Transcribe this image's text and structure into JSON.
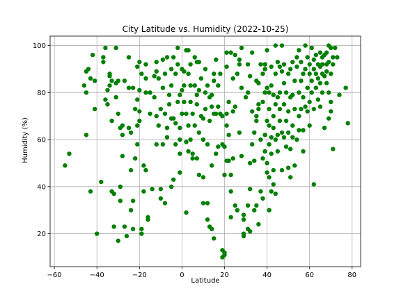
{
  "chart_data": {
    "type": "scatter",
    "title": "City Latitude vs. Humidity (2022-10-25)",
    "xlabel": "Latitude",
    "ylabel": "Humidity (%)",
    "xlim": [
      -62,
      84
    ],
    "ylim": [
      6,
      104
    ],
    "xticks": [
      -60,
      -40,
      -20,
      0,
      20,
      40,
      60,
      80
    ],
    "yticks": [
      20,
      40,
      60,
      80,
      100
    ],
    "xtick_labels": [
      "−60",
      "−40",
      "−20",
      "0",
      "20",
      "40",
      "60",
      "80"
    ],
    "ytick_labels": [
      "20",
      "40",
      "60",
      "80",
      "100"
    ],
    "grid": true,
    "marker_color": "#007f00",
    "points": [
      [
        -55,
        49
      ],
      [
        -53,
        54
      ],
      [
        -46,
        83
      ],
      [
        -45,
        80
      ],
      [
        -45,
        89
      ],
      [
        -45,
        62
      ],
      [
        -44,
        90
      ],
      [
        -43,
        86
      ],
      [
        -42,
        96
      ],
      [
        -41,
        85
      ],
      [
        -41,
        73
      ],
      [
        -40,
        20
      ],
      [
        -43,
        38
      ],
      [
        -38,
        42
      ],
      [
        -37,
        93
      ],
      [
        -37,
        95
      ],
      [
        -36,
        99
      ],
      [
        -36,
        77
      ],
      [
        -35,
        75
      ],
      [
        -35,
        81
      ],
      [
        -34,
        83
      ],
      [
        -34,
        87
      ],
      [
        -34,
        88
      ],
      [
        -33,
        68
      ],
      [
        -33,
        85
      ],
      [
        -33,
        38
      ],
      [
        -32,
        37
      ],
      [
        -32,
        23
      ],
      [
        -31,
        99
      ],
      [
        -31,
        78
      ],
      [
        -31,
        84
      ],
      [
        -30,
        85
      ],
      [
        -30,
        71
      ],
      [
        -30,
        17
      ],
      [
        -29,
        65
      ],
      [
        -29,
        40
      ],
      [
        -29,
        34
      ],
      [
        -28,
        62
      ],
      [
        -28,
        53
      ],
      [
        -28,
        66
      ],
      [
        -27,
        85
      ],
      [
        -27,
        23
      ],
      [
        -26,
        19
      ],
      [
        -25,
        95
      ],
      [
        -25,
        82
      ],
      [
        -25,
        65
      ],
      [
        -24,
        30
      ],
      [
        -24,
        47
      ],
      [
        -24,
        63
      ],
      [
        -23,
        82
      ],
      [
        -23,
        34
      ],
      [
        -23,
        22
      ],
      [
        -22,
        52
      ],
      [
        -22,
        73
      ],
      [
        -21,
        77
      ],
      [
        -21,
        91
      ],
      [
        -21,
        58
      ],
      [
        -21,
        66
      ],
      [
        -20,
        93
      ],
      [
        -20,
        81
      ],
      [
        -20,
        68
      ],
      [
        -20,
        72
      ],
      [
        -19,
        88
      ],
      [
        -19,
        22
      ],
      [
        -19,
        20
      ],
      [
        -18,
        49
      ],
      [
        -18,
        38
      ],
      [
        -17,
        86
      ],
      [
        -17,
        80
      ],
      [
        -17,
        92
      ],
      [
        -17,
        47
      ],
      [
        -16,
        27
      ],
      [
        -16,
        26
      ],
      [
        -15,
        71
      ],
      [
        -15,
        80
      ],
      [
        -14,
        39
      ],
      [
        -13,
        78
      ],
      [
        -13,
        87
      ],
      [
        -12,
        70
      ],
      [
        -12,
        58
      ],
      [
        -12,
        93
      ],
      [
        -12,
        89
      ],
      [
        -11,
        86
      ],
      [
        -11,
        66
      ],
      [
        -10,
        73
      ],
      [
        -10,
        39
      ],
      [
        -10,
        35
      ],
      [
        -9,
        58
      ],
      [
        -9,
        82
      ],
      [
        -9,
        94
      ],
      [
        -8,
        88
      ],
      [
        -8,
        71
      ],
      [
        -8,
        33
      ],
      [
        -7,
        95
      ],
      [
        -7,
        65
      ],
      [
        -7,
        61
      ],
      [
        -6,
        75
      ],
      [
        -6,
        79
      ],
      [
        -5,
        83
      ],
      [
        -5,
        90
      ],
      [
        -5,
        40
      ],
      [
        -5,
        69
      ],
      [
        -4,
        69
      ],
      [
        -4,
        95
      ],
      [
        -4,
        43
      ],
      [
        -3,
        67
      ],
      [
        -3,
        58
      ],
      [
        -3,
        88
      ],
      [
        -2,
        99
      ],
      [
        -2,
        92
      ],
      [
        -2,
        76
      ],
      [
        -1,
        79
      ],
      [
        -1,
        65
      ],
      [
        -1,
        46
      ],
      [
        -1,
        54
      ],
      [
        -1,
        60
      ],
      [
        0,
        90
      ],
      [
        0,
        71
      ],
      [
        0,
        81
      ],
      [
        1,
        89
      ],
      [
        1,
        83
      ],
      [
        1,
        76
      ],
      [
        2,
        98
      ],
      [
        2,
        71
      ],
      [
        2,
        29
      ],
      [
        2,
        59
      ],
      [
        3,
        55
      ],
      [
        3,
        88
      ],
      [
        3,
        98
      ],
      [
        3,
        66
      ],
      [
        4,
        92
      ],
      [
        4,
        76
      ],
      [
        4,
        83
      ],
      [
        4,
        60
      ],
      [
        5,
        71
      ],
      [
        5,
        52
      ],
      [
        5,
        54
      ],
      [
        6,
        95
      ],
      [
        6,
        66
      ],
      [
        6,
        83
      ],
      [
        7,
        79
      ],
      [
        7,
        75
      ],
      [
        7,
        52
      ],
      [
        7,
        93
      ],
      [
        8,
        63
      ],
      [
        8,
        93
      ],
      [
        8,
        81
      ],
      [
        8,
        45
      ],
      [
        9,
        86
      ],
      [
        9,
        70
      ],
      [
        10,
        44
      ],
      [
        10,
        60
      ],
      [
        10,
        69
      ],
      [
        10,
        33
      ],
      [
        11,
        90
      ],
      [
        11,
        73
      ],
      [
        11,
        80
      ],
      [
        12,
        58
      ],
      [
        12,
        33
      ],
      [
        12,
        26
      ],
      [
        12,
        83
      ],
      [
        13,
        23
      ],
      [
        13,
        68
      ],
      [
        13,
        78
      ],
      [
        14,
        22
      ],
      [
        14,
        49
      ],
      [
        14,
        74
      ],
      [
        14,
        79
      ],
      [
        15,
        18
      ],
      [
        15,
        88
      ],
      [
        15,
        85
      ],
      [
        15,
        71
      ],
      [
        16,
        71
      ],
      [
        16,
        94
      ],
      [
        16,
        54
      ],
      [
        17,
        74
      ],
      [
        17,
        57
      ],
      [
        17,
        83
      ],
      [
        18,
        88
      ],
      [
        18,
        71
      ],
      [
        19,
        58
      ],
      [
        19,
        13
      ],
      [
        19,
        10
      ],
      [
        19,
        70
      ],
      [
        20,
        45
      ],
      [
        20,
        12
      ],
      [
        20,
        11
      ],
      [
        20,
        57
      ],
      [
        21,
        91
      ],
      [
        21,
        71
      ],
      [
        21,
        66
      ],
      [
        21,
        51
      ],
      [
        21,
        97
      ],
      [
        22,
        76
      ],
      [
        22,
        62
      ],
      [
        22,
        51
      ],
      [
        23,
        97
      ],
      [
        23,
        45
      ],
      [
        23,
        38
      ],
      [
        23,
        27
      ],
      [
        24,
        86
      ],
      [
        24,
        52
      ],
      [
        24,
        72
      ],
      [
        25,
        74
      ],
      [
        25,
        32
      ],
      [
        25,
        96
      ],
      [
        26,
        30
      ],
      [
        26,
        88
      ],
      [
        27,
        94
      ],
      [
        27,
        63
      ],
      [
        27,
        92
      ],
      [
        28,
        99
      ],
      [
        28,
        82
      ],
      [
        28,
        53
      ],
      [
        29,
        26
      ],
      [
        29,
        20
      ],
      [
        29,
        19
      ],
      [
        29,
        28
      ],
      [
        30,
        78
      ],
      [
        31,
        32
      ],
      [
        31,
        22
      ],
      [
        31,
        92
      ],
      [
        31,
        80
      ],
      [
        32,
        21
      ],
      [
        32,
        50
      ],
      [
        32,
        39
      ],
      [
        32,
        87
      ],
      [
        33,
        97
      ],
      [
        33,
        72
      ],
      [
        33,
        58
      ],
      [
        34,
        63
      ],
      [
        34,
        51
      ],
      [
        34,
        30
      ],
      [
        35,
        70
      ],
      [
        35,
        85
      ],
      [
        35,
        32
      ],
      [
        35,
        68
      ],
      [
        36,
        75
      ],
      [
        36,
        24
      ],
      [
        36,
        84
      ],
      [
        36,
        73
      ],
      [
        37,
        60
      ],
      [
        37,
        92
      ],
      [
        37,
        38
      ],
      [
        38,
        35
      ],
      [
        38,
        52
      ],
      [
        38,
        76
      ],
      [
        38,
        88
      ],
      [
        39,
        62
      ],
      [
        39,
        90
      ],
      [
        39,
        80
      ],
      [
        39,
        55
      ],
      [
        39,
        92
      ],
      [
        40,
        50
      ],
      [
        40,
        68
      ],
      [
        40,
        82
      ],
      [
        40,
        46
      ],
      [
        40,
        98
      ],
      [
        41,
        80
      ],
      [
        41,
        58
      ],
      [
        41,
        44
      ],
      [
        41,
        66
      ],
      [
        41,
        73
      ],
      [
        41,
        30
      ],
      [
        42,
        91
      ],
      [
        42,
        54
      ],
      [
        42,
        61
      ],
      [
        42,
        83
      ],
      [
        42,
        38
      ],
      [
        43,
        70
      ],
      [
        43,
        47
      ],
      [
        43,
        79
      ],
      [
        43,
        41
      ],
      [
        43,
        65
      ],
      [
        44,
        88
      ],
      [
        44,
        100
      ],
      [
        44,
        60
      ],
      [
        44,
        37
      ],
      [
        44,
        75
      ],
      [
        45,
        62
      ],
      [
        45,
        78
      ],
      [
        45,
        93
      ],
      [
        45,
        55
      ],
      [
        46,
        80
      ],
      [
        46,
        91
      ],
      [
        46,
        68
      ],
      [
        46,
        73
      ],
      [
        47,
        100
      ],
      [
        47,
        89
      ],
      [
        47,
        63
      ],
      [
        47,
        47
      ],
      [
        48,
        75
      ],
      [
        48,
        84
      ],
      [
        48,
        61
      ],
      [
        48,
        92
      ],
      [
        49,
        80
      ],
      [
        49,
        57
      ],
      [
        49,
        68
      ],
      [
        50,
        72
      ],
      [
        50,
        63
      ],
      [
        50,
        48
      ],
      [
        50,
        88
      ],
      [
        51,
        90
      ],
      [
        51,
        78
      ],
      [
        51,
        56
      ],
      [
        51,
        44
      ],
      [
        52,
        79
      ],
      [
        52,
        66
      ],
      [
        52,
        93
      ],
      [
        52,
        61
      ],
      [
        53,
        85
      ],
      [
        53,
        73
      ],
      [
        53,
        49
      ],
      [
        54,
        91
      ],
      [
        54,
        60
      ],
      [
        54,
        95
      ],
      [
        55,
        70
      ],
      [
        55,
        98
      ],
      [
        55,
        80
      ],
      [
        55,
        64
      ],
      [
        56,
        85
      ],
      [
        56,
        73
      ],
      [
        56,
        93
      ],
      [
        57,
        88
      ],
      [
        57,
        55
      ],
      [
        57,
        78
      ],
      [
        57,
        64
      ],
      [
        58,
        90
      ],
      [
        58,
        74
      ],
      [
        58,
        100
      ],
      [
        59,
        95
      ],
      [
        59,
        82
      ],
      [
        59,
        72
      ],
      [
        60,
        88
      ],
      [
        60,
        66
      ],
      [
        60,
        76
      ],
      [
        60,
        92
      ],
      [
        61,
        85
      ],
      [
        61,
        80
      ],
      [
        61,
        99
      ],
      [
        62,
        94
      ],
      [
        62,
        90
      ],
      [
        62,
        73
      ],
      [
        62,
        41
      ],
      [
        63,
        88
      ],
      [
        63,
        82
      ],
      [
        63,
        96
      ],
      [
        64,
        86
      ],
      [
        64,
        92
      ],
      [
        64,
        77
      ],
      [
        65,
        97
      ],
      [
        65,
        91
      ],
      [
        65,
        84
      ],
      [
        65,
        74
      ],
      [
        66,
        88
      ],
      [
        66,
        95
      ],
      [
        66,
        80
      ],
      [
        66,
        92
      ],
      [
        67,
        96
      ],
      [
        67,
        87
      ],
      [
        67,
        65
      ],
      [
        68,
        89
      ],
      [
        68,
        97
      ],
      [
        68,
        84
      ],
      [
        68,
        92
      ],
      [
        69,
        100
      ],
      [
        69,
        93
      ],
      [
        69,
        80
      ],
      [
        69,
        69
      ],
      [
        70,
        76
      ],
      [
        70,
        88
      ],
      [
        70,
        72
      ],
      [
        70,
        99
      ],
      [
        71,
        95
      ],
      [
        71,
        56
      ],
      [
        71,
        92
      ],
      [
        72,
        99
      ],
      [
        73,
        95
      ],
      [
        74,
        79
      ],
      [
        77,
        82
      ],
      [
        78,
        67
      ]
    ]
  }
}
